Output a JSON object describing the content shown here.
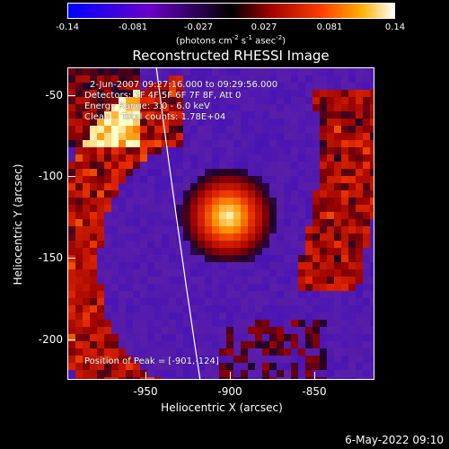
{
  "colorbar": {
    "ticks": [
      "-0.14",
      "-0.081",
      "-0.027",
      "0.027",
      "0.081",
      "0.14"
    ],
    "units_main": "(photons cm",
    "units_exp1": "-2",
    "units_mid1": " s",
    "units_exp2": "-1",
    "units_mid2": " asec",
    "units_exp3": "-2",
    "units_end": ")",
    "colors": [
      "#0000ff",
      "#6a00c8",
      "#000000",
      "#a00000",
      "#ff4000",
      "#ffb000",
      "#ffffff"
    ]
  },
  "title": "Reconstructed RHESSI Image",
  "info": {
    "time_range": "2-Jun-2007 09:27:16.000 to 09:29:56.000",
    "detectors": "Detectors: 3F 4F 5F 6F 7F 8F, Att 0",
    "energy": "Energy Range: 3.0 - 6.0 keV",
    "clean": "Clean    Total counts: 1.78E+04",
    "peak": "Position of Peak = [-901,-124]"
  },
  "axes": {
    "xlabel": "Heliocentric X (arcsec)",
    "ylabel": "Heliocentric Y (arcsec)",
    "xticks": [
      "-950",
      "-900",
      "-850"
    ],
    "yticks": [
      "-50",
      "-100",
      "-150",
      "-200"
    ]
  },
  "datestamp": "6-May-2022 09:10",
  "chart_data": {
    "type": "heatmap",
    "title": "Reconstructed RHESSI Image",
    "xlabel": "Heliocentric X (arcsec)",
    "ylabel": "Heliocentric Y (arcsec)",
    "xlim": [
      -996,
      -820
    ],
    "ylim": [
      -225,
      -31
    ],
    "peak": [
      -901,
      -124
    ],
    "colorbar_range": [
      -0.14,
      0.14
    ],
    "limb": "white-curve"
  }
}
